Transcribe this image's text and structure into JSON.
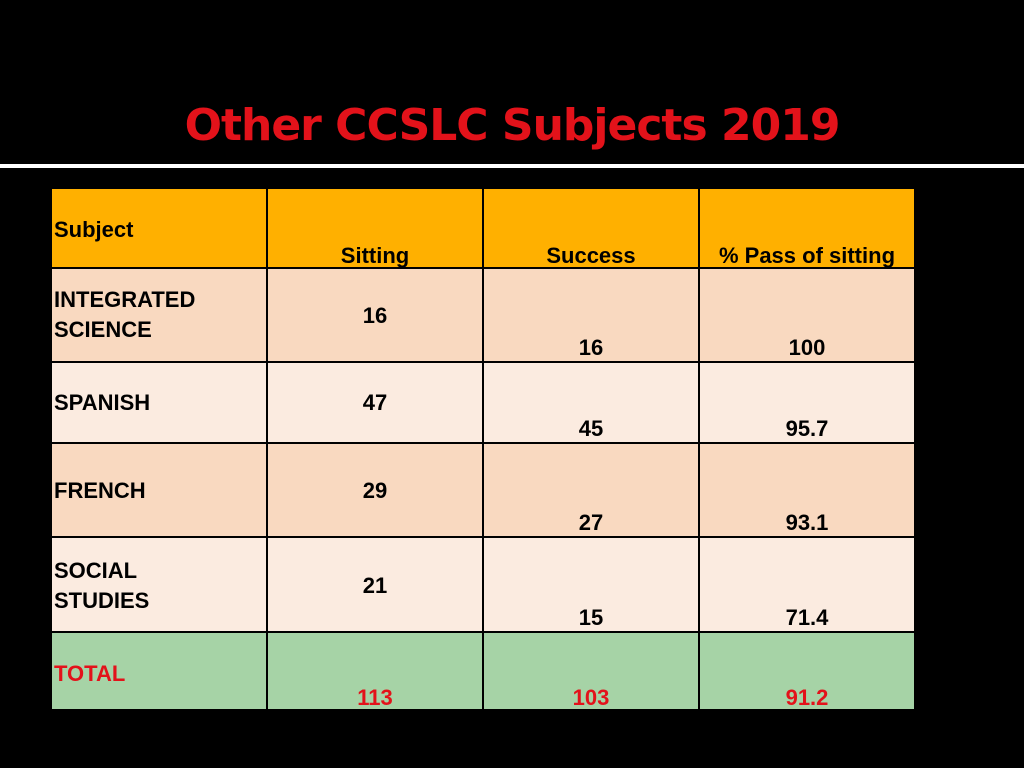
{
  "slide": {
    "title": "Other CCSLC Subjects 2019"
  },
  "table": {
    "headers": {
      "subject": "Subject",
      "sitting": "Sitting",
      "success": "Success",
      "pass_pct": "% Pass of sitting"
    },
    "rows": [
      {
        "subject_line1": "INTEGRATED",
        "subject_line2": "SCIENCE",
        "sitting": "16",
        "success": "16",
        "pass_pct": "100"
      },
      {
        "subject_line1": "SPANISH",
        "subject_line2": "",
        "sitting": "47",
        "success": "45",
        "pass_pct": "95.7"
      },
      {
        "subject_line1": "FRENCH",
        "subject_line2": "",
        "sitting": "29",
        "success": "27",
        "pass_pct": "93.1"
      },
      {
        "subject_line1": "SOCIAL",
        "subject_line2": "STUDIES",
        "sitting": "21",
        "success": "15",
        "pass_pct": "71.4"
      }
    ],
    "total": {
      "subject": "TOTAL",
      "sitting": "113",
      "success": "103",
      "pass_pct": "91.2"
    }
  },
  "colors": {
    "background": "#000000",
    "title": "#e3121a",
    "header_fill": "#ffb000",
    "row_dark": "#f9d9c0",
    "row_light": "#fbebe0",
    "total_fill": "#a6d3a6",
    "total_text": "#e3121a"
  }
}
